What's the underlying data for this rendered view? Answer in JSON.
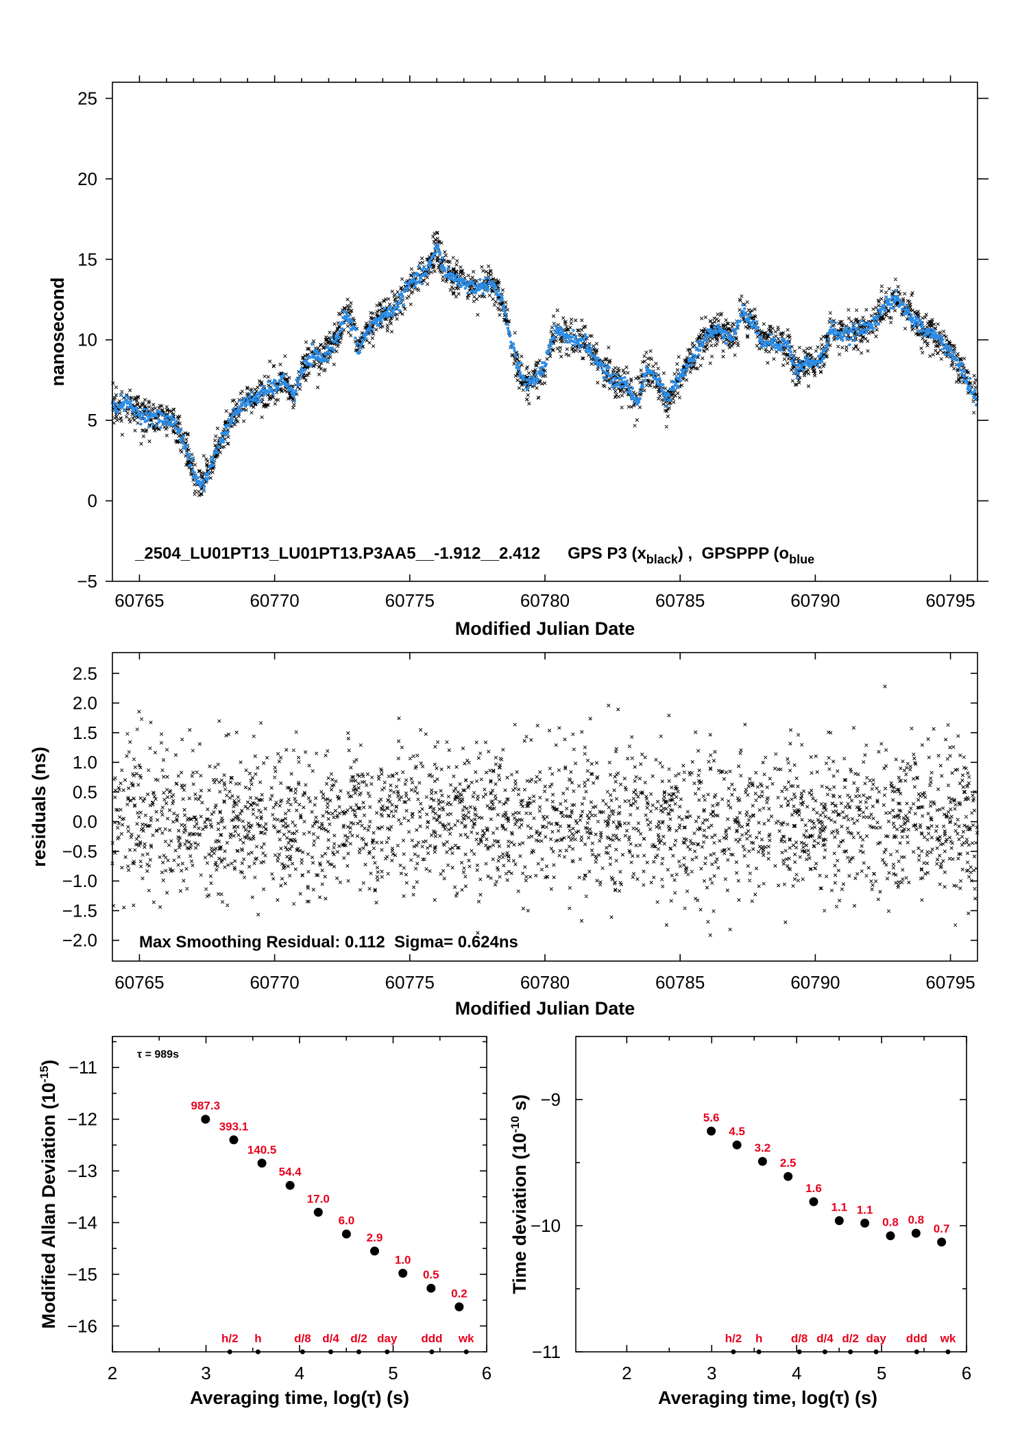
{
  "colors": {
    "black_series": "#000000",
    "blue_series": "#2a8de8",
    "label_red": "#e8001c"
  },
  "chart_data": [
    {
      "type": "scatter",
      "id": "time_series",
      "ylabel": "nanosecond",
      "xlabel": "Modified Julian Date",
      "xlim": [
        60764.0,
        60796.0
      ],
      "ylim": [
        -5,
        26
      ],
      "x_ticks": [
        "60765",
        "60770",
        "60775",
        "60780",
        "60785",
        "60790",
        "60795"
      ],
      "y_ticks": [
        "-5",
        "0",
        "5",
        "10",
        "15",
        "20",
        "25"
      ],
      "annotation": "_2504_LU01PT13_LU01PT13.P3AA5__-1.912__2.412      GPS P3 (x",
      "annotation_sub1": "black",
      "annotation_mid": ") ,  GPSPPP (o",
      "annotation_sub2": "blue",
      "series": [
        {
          "name": "GPS P3",
          "marker": "x",
          "color": "black"
        },
        {
          "name": "GPSPPP",
          "marker": "o",
          "color": "blue"
        }
      ],
      "trend_points": [
        [
          60764.0,
          5.8
        ],
        [
          60764.5,
          6.1
        ],
        [
          60765.0,
          5.4
        ],
        [
          60765.5,
          5.2
        ],
        [
          60766.0,
          5.0
        ],
        [
          60766.3,
          4.9
        ],
        [
          60766.6,
          3.9
        ],
        [
          60766.9,
          2.3
        ],
        [
          60767.1,
          1.2
        ],
        [
          60767.4,
          1.1
        ],
        [
          60767.6,
          2.0
        ],
        [
          60768.0,
          3.7
        ],
        [
          60768.5,
          5.4
        ],
        [
          60769.0,
          6.2
        ],
        [
          60769.5,
          6.6
        ],
        [
          60770.0,
          7.1
        ],
        [
          60770.4,
          7.5
        ],
        [
          60770.7,
          6.5
        ],
        [
          60771.0,
          8.0
        ],
        [
          60771.4,
          9.0
        ],
        [
          60771.8,
          8.8
        ],
        [
          60772.3,
          10.1
        ],
        [
          60772.6,
          11.5
        ],
        [
          60772.9,
          10.8
        ],
        [
          60773.1,
          9.3
        ],
        [
          60773.4,
          10.5
        ],
        [
          60774.0,
          11.5
        ],
        [
          60774.5,
          12.0
        ],
        [
          60775.0,
          13.5
        ],
        [
          60775.5,
          14.0
        ],
        [
          60775.8,
          14.8
        ],
        [
          60776.0,
          15.8
        ],
        [
          60776.3,
          14.2
        ],
        [
          60776.7,
          13.8
        ],
        [
          60777.0,
          13.5
        ],
        [
          60777.5,
          13.2
        ],
        [
          60778.0,
          13.6
        ],
        [
          60778.4,
          12.5
        ],
        [
          60778.8,
          9.5
        ],
        [
          60779.1,
          7.8
        ],
        [
          60779.4,
          7.2
        ],
        [
          60779.7,
          7.6
        ],
        [
          60780.0,
          8.5
        ],
        [
          60780.4,
          10.5
        ],
        [
          60781.0,
          10.1
        ],
        [
          60781.5,
          9.8
        ],
        [
          60782.0,
          8.5
        ],
        [
          60782.5,
          7.5
        ],
        [
          60783.0,
          7.3
        ],
        [
          60783.4,
          6.0
        ],
        [
          60783.8,
          8.3
        ],
        [
          60784.2,
          7.4
        ],
        [
          60784.5,
          6.2
        ],
        [
          60785.0,
          7.8
        ],
        [
          60785.5,
          9.0
        ],
        [
          60786.0,
          10.3
        ],
        [
          60786.5,
          10.6
        ],
        [
          60787.0,
          10.2
        ],
        [
          60787.3,
          11.8
        ],
        [
          60787.6,
          11.2
        ],
        [
          60788.0,
          10.0
        ],
        [
          60788.5,
          9.8
        ],
        [
          60789.0,
          9.7
        ],
        [
          60789.3,
          8.0
        ],
        [
          60789.6,
          8.6
        ],
        [
          60790.0,
          8.5
        ],
        [
          60790.3,
          9.0
        ],
        [
          60790.6,
          10.8
        ],
        [
          60791.0,
          10.2
        ],
        [
          60791.5,
          10.5
        ],
        [
          60792.0,
          10.8
        ],
        [
          60792.5,
          12.0
        ],
        [
          60793.0,
          12.5
        ],
        [
          60793.5,
          11.5
        ],
        [
          60794.0,
          10.6
        ],
        [
          60794.5,
          10.2
        ],
        [
          60795.0,
          9.3
        ],
        [
          60795.5,
          7.8
        ],
        [
          60796.0,
          6.2
        ]
      ]
    },
    {
      "type": "scatter",
      "id": "residuals",
      "ylabel": "residuals (ns)",
      "xlabel": "Modified Julian Date",
      "xlim": [
        60764.0,
        60796.0
      ],
      "ylim": [
        -2.35,
        2.85
      ],
      "x_ticks": [
        "60765",
        "60770",
        "60775",
        "60780",
        "60785",
        "60790",
        "60795"
      ],
      "y_ticks": [
        "-2.0",
        "-1.5",
        "-1.0",
        "-0.5",
        "0.0",
        "0.5",
        "1.0",
        "1.5",
        "2.0",
        "2.5"
      ],
      "annotation": "Max Smoothing Residual: 0.112  Sigma= 0.624ns",
      "sigma": 0.624
    },
    {
      "type": "scatter",
      "id": "modified_allan_deviation",
      "ylabel": "Modified Allan Deviation (10",
      "ylabel_sup": "-15",
      "ylabel_end": ")",
      "xlabel": "Averaging time, log(τ) (s)",
      "xlim": [
        2,
        6
      ],
      "ylim": [
        -16.5,
        -10.4
      ],
      "x_ticks": [
        "2",
        "3",
        "4",
        "5",
        "6"
      ],
      "y_ticks": [
        "-16",
        "-15",
        "-14",
        "-13",
        "-12",
        "-11"
      ],
      "note": "τ = 989s",
      "x": [
        2.995,
        3.297,
        3.598,
        3.899,
        4.2,
        4.501,
        4.802,
        5.104,
        5.405,
        5.706
      ],
      "values": [
        -12.0,
        -12.4,
        -12.85,
        -13.28,
        -13.8,
        -14.22,
        -14.55,
        -14.98,
        -15.27,
        -15.63
      ],
      "value_labels": [
        "987.3",
        "393.1",
        "140.5",
        "54.4",
        "17.0",
        "6.0",
        "2.9",
        "1.0",
        "0.5",
        "0.2"
      ],
      "markers_x": [
        3.255,
        3.556,
        4.032,
        4.333,
        4.634,
        4.936,
        5.413,
        5.782
      ],
      "markers": [
        "h/2",
        "h",
        "d/8",
        "d/4",
        "d/2",
        "day",
        "ddd",
        "wk"
      ]
    },
    {
      "type": "scatter",
      "id": "time_deviation",
      "ylabel": "Time deviation (10",
      "ylabel_sup": "-10",
      "ylabel_end": " s)",
      "xlabel": "Averaging time, log(τ) (s)",
      "xlim": [
        1.4,
        6
      ],
      "ylim": [
        -11,
        -8.5
      ],
      "x_ticks": [
        "2",
        "3",
        "4",
        "5",
        "6"
      ],
      "y_ticks": [
        "-11",
        "-10",
        "-9"
      ],
      "x": [
        2.995,
        3.297,
        3.598,
        3.899,
        4.2,
        4.501,
        4.802,
        5.104,
        5.405,
        5.706
      ],
      "values": [
        -9.25,
        -9.36,
        -9.49,
        -9.61,
        -9.81,
        -9.96,
        -9.98,
        -10.08,
        -10.06,
        -10.13
      ],
      "value_labels": [
        "5.6",
        "4.5",
        "3.2",
        "2.5",
        "1.6",
        "1.1",
        "1.1",
        "0.8",
        "0.8",
        "0.7"
      ],
      "markers_x": [
        3.255,
        3.556,
        4.032,
        4.333,
        4.634,
        4.936,
        5.413,
        5.782
      ],
      "markers": [
        "h/2",
        "h",
        "d/8",
        "d/4",
        "d/2",
        "day",
        "ddd",
        "wk"
      ]
    }
  ]
}
